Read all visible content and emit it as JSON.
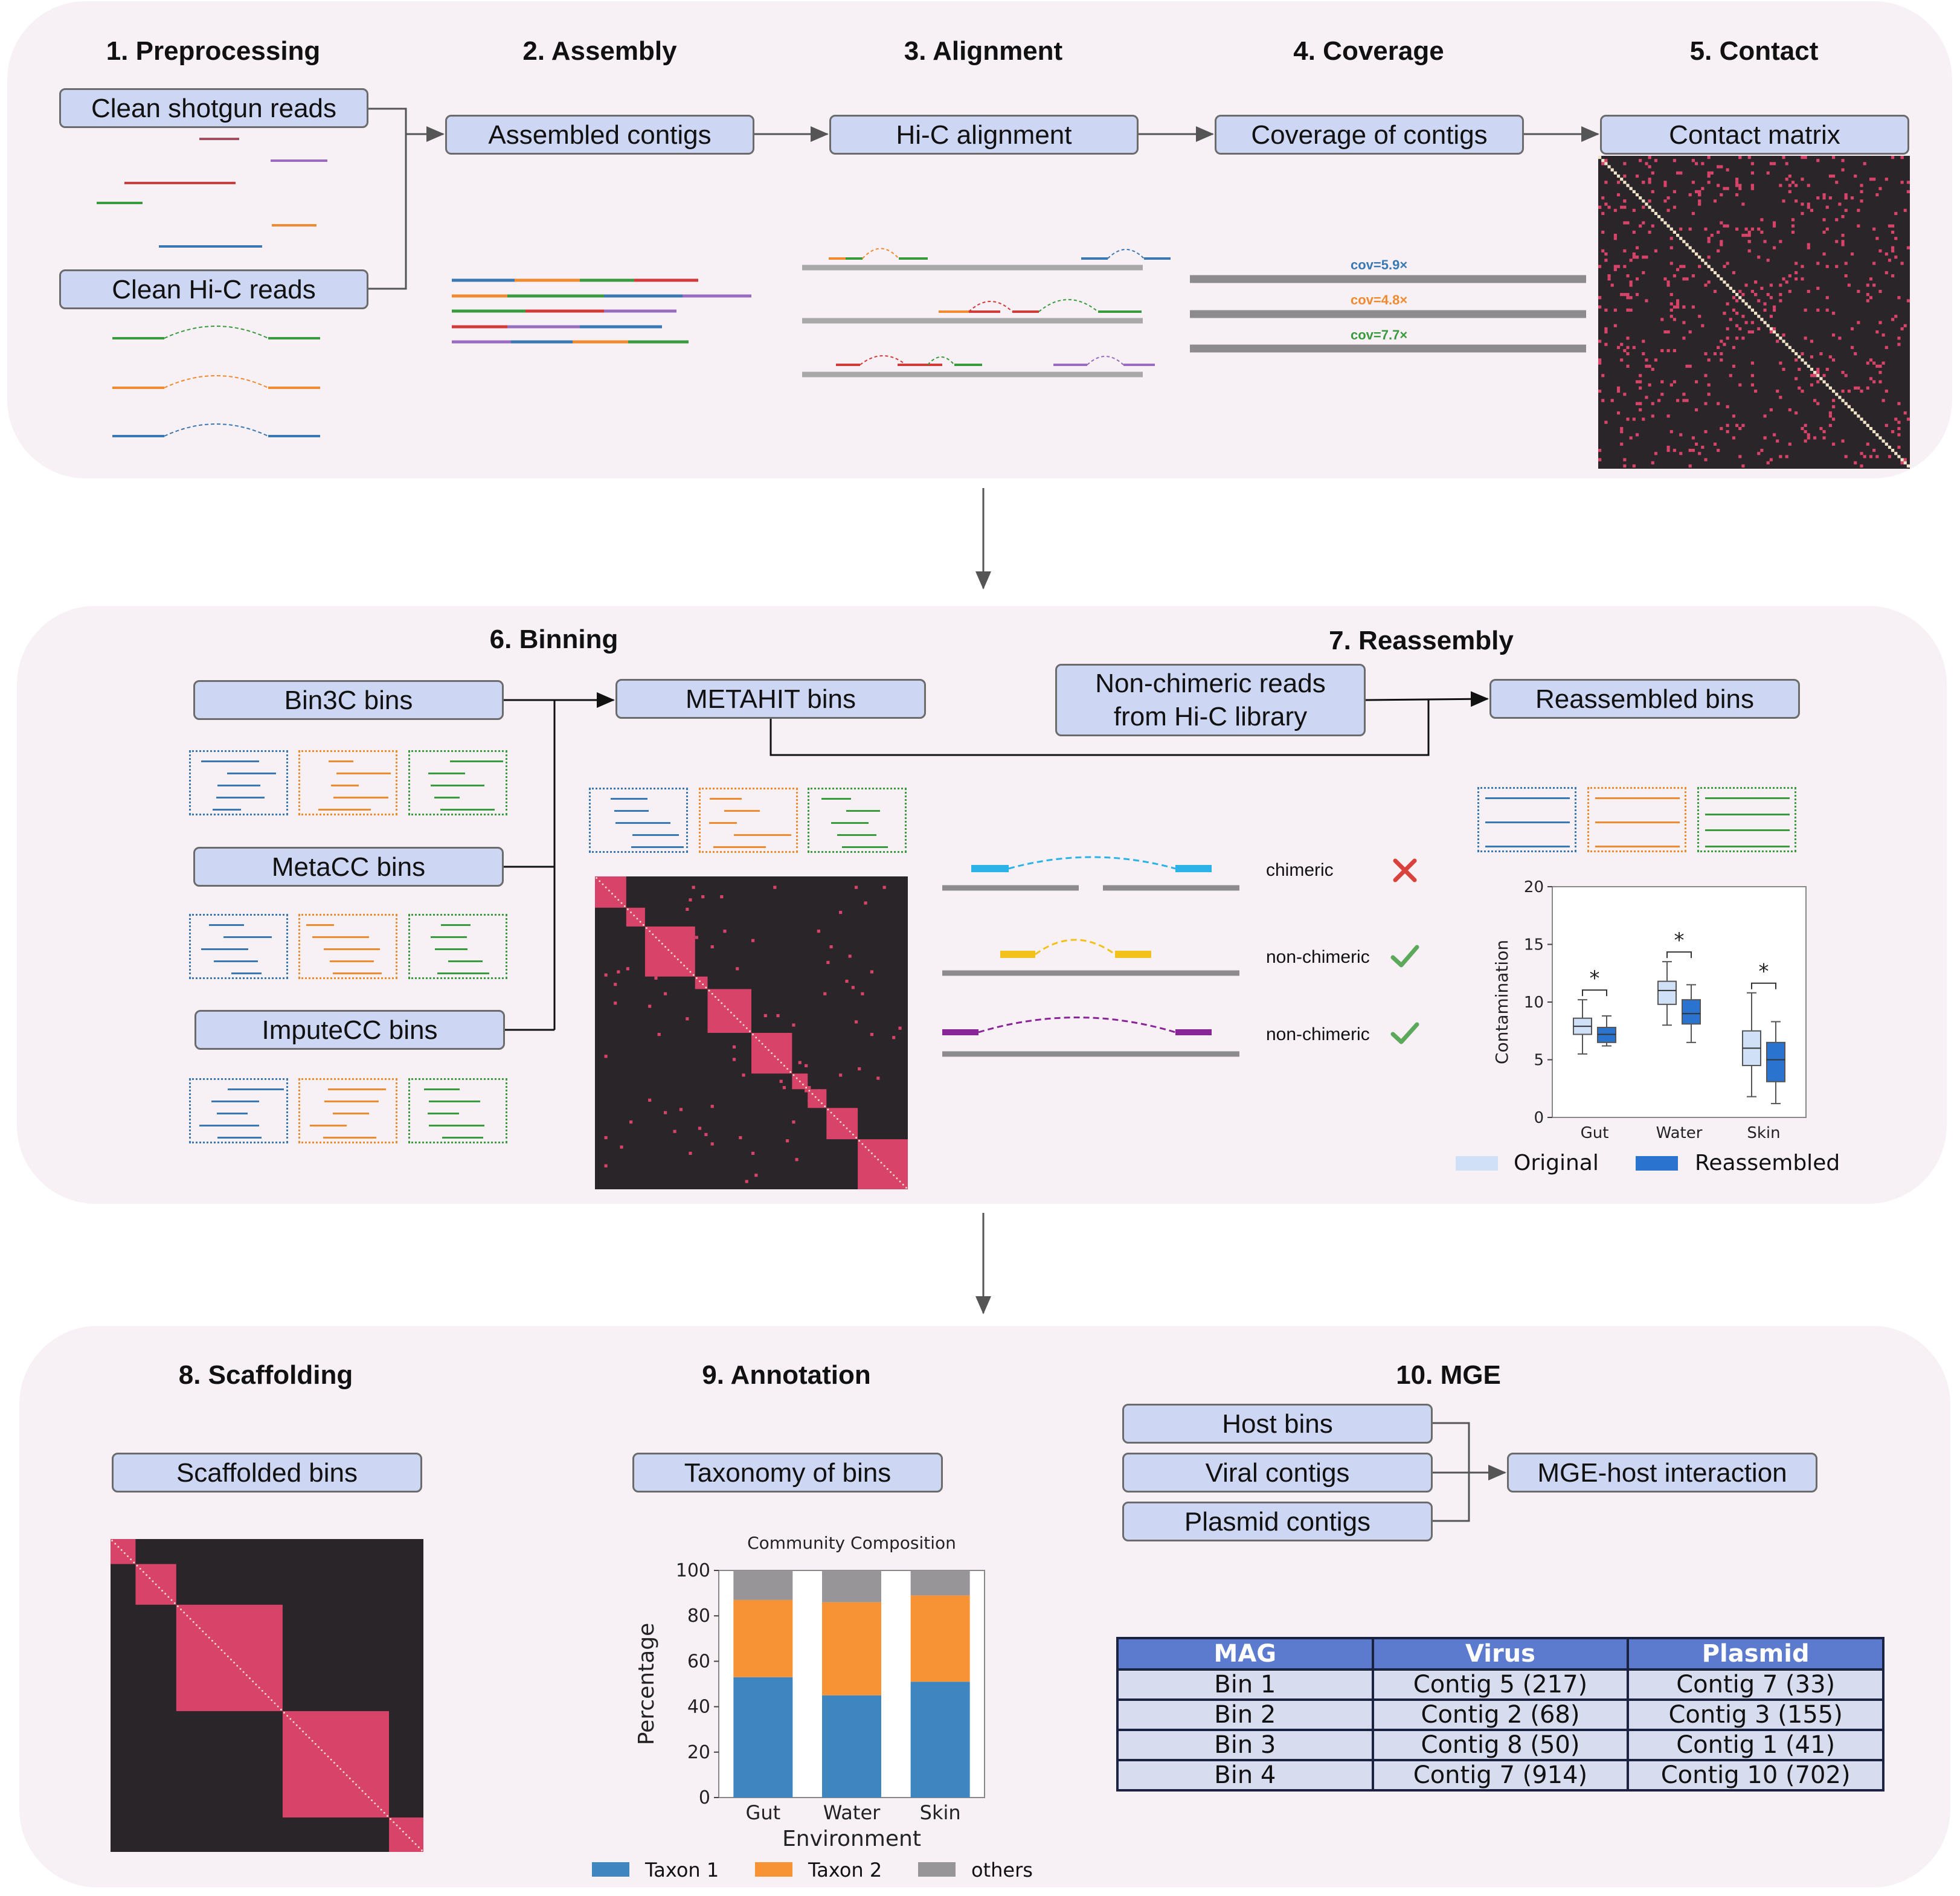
{
  "panel1": {
    "steps": [
      "1. Preprocessing",
      "2. Assembly",
      "3. Alignment",
      "4. Coverage",
      "5. Contact"
    ],
    "nodes": {
      "shotgun": "Clean shotgun reads",
      "hic": "Clean Hi-C reads",
      "contigs": "Assembled contigs",
      "alignment": "Hi-C alignment",
      "coverage": "Coverage of contigs",
      "contact": "Contact matrix"
    },
    "coverage_labels": [
      "cov=5.9×",
      "cov=4.8×",
      "cov=7.7×"
    ]
  },
  "panel2": {
    "steps": [
      "6. Binning",
      "7. Reassembly"
    ],
    "nodes": {
      "bin3c": "Bin3C bins",
      "metacc": "MetaCC bins",
      "imputecc": "ImputeCC bins",
      "metahit": "METAHIT bins",
      "nonchimeric_reads": "Non-chimeric reads from Hi-C library",
      "reassembled": "Reassembled bins"
    },
    "read_types": [
      "chimeric",
      "non-chimeric",
      "non-chimeric"
    ],
    "legend": [
      "Original",
      "Reassembled"
    ]
  },
  "panel3": {
    "steps": [
      "8. Scaffolding",
      "9. Annotation",
      "10. MGE"
    ],
    "nodes": {
      "scaffolded": "Scaffolded bins",
      "taxonomy": "Taxonomy of bins",
      "host": "Host bins",
      "viral": "Viral contigs",
      "plasmid": "Plasmid contigs",
      "mge_host": "MGE-host interaction"
    },
    "table": {
      "headers": [
        "MAG",
        "Virus",
        "Plasmid"
      ],
      "rows": [
        [
          "Bin 1",
          "Contig 5 (217)",
          "Contig 7 (33)"
        ],
        [
          "Bin 2",
          "Contig 2 (68)",
          "Contig 3 (155)"
        ],
        [
          "Bin 3",
          "Contig 8 (50)",
          "Contig 1 (41)"
        ],
        [
          "Bin 4",
          "Contig 7 (914)",
          "Contig 10 (702)"
        ]
      ]
    }
  },
  "colors": {
    "blue": "#3a78b4",
    "orange": "#f08a30",
    "green": "#3a9a3e",
    "red": "#d23a3a",
    "purple": "#9a6cc0",
    "matrix_bg": "#2a2528",
    "matrix_pink": "#d8436a",
    "node_fill": "#cdd6f2",
    "panel_bg": "#f7f1f5"
  },
  "chart_data": [
    {
      "type": "box",
      "ylabel": "Contamination",
      "categories": [
        "Gut",
        "Water",
        "Skin"
      ],
      "ylim": [
        0,
        20
      ],
      "yticks": [
        0,
        5,
        10,
        15,
        20
      ],
      "series": [
        {
          "name": "Original",
          "color": "#cfe0f7",
          "boxes": [
            {
              "min": 5.5,
              "q1": 7.2,
              "median": 7.9,
              "q3": 8.6,
              "max": 10.2
            },
            {
              "min": 8.0,
              "q1": 9.8,
              "median": 11.0,
              "q3": 11.8,
              "max": 13.5
            },
            {
              "min": 1.8,
              "q1": 4.5,
              "median": 6.0,
              "q3": 7.5,
              "max": 10.8
            }
          ]
        },
        {
          "name": "Reassembled",
          "color": "#2a74d0",
          "boxes": [
            {
              "min": 6.2,
              "q1": 6.5,
              "median": 7.2,
              "q3": 7.8,
              "max": 8.8
            },
            {
              "min": 6.5,
              "q1": 8.1,
              "median": 9.0,
              "q3": 10.2,
              "max": 11.5
            },
            {
              "min": 1.2,
              "q1": 3.1,
              "median": 5.0,
              "q3": 6.5,
              "max": 8.3
            }
          ]
        }
      ],
      "annotations": [
        "*",
        "*",
        "*"
      ],
      "legend": "bottom"
    },
    {
      "type": "bar",
      "stacked": true,
      "title": "Community Composition",
      "xlabel": "Environment",
      "ylabel": "Percentage",
      "categories": [
        "Gut",
        "Water",
        "Skin"
      ],
      "ylim": [
        0,
        100
      ],
      "yticks": [
        0,
        20,
        40,
        60,
        80,
        100
      ],
      "series": [
        {
          "name": "Taxon 1",
          "color": "#3f86c0",
          "values": [
            53,
            45,
            51
          ]
        },
        {
          "name": "Taxon 2",
          "color": "#f79235",
          "values": [
            34,
            41,
            38
          ]
        },
        {
          "name": "others",
          "color": "#979598",
          "values": [
            13,
            14,
            11
          ]
        }
      ],
      "legend": "bottom"
    }
  ]
}
